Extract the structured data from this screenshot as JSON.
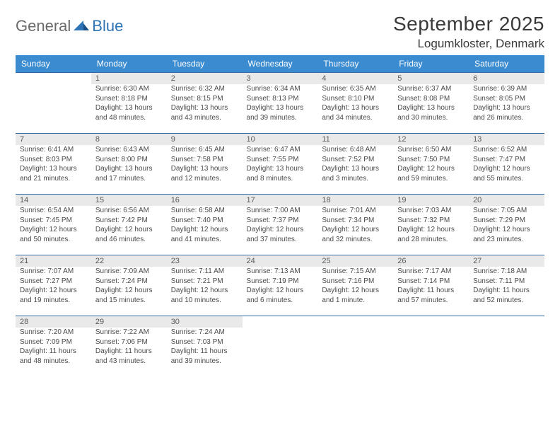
{
  "logo": {
    "word1": "General",
    "word2": "Blue"
  },
  "title": "September 2025",
  "location": "Logumkloster, Denmark",
  "colors": {
    "header_bg": "#3a8bd0",
    "header_text": "#ffffff",
    "daynum_bg": "#e9e9e9",
    "rule": "#2f6aa8",
    "text": "#4a4a4a",
    "logo_gray": "#6b6b6b",
    "logo_blue": "#2f75b5"
  },
  "day_names": [
    "Sunday",
    "Monday",
    "Tuesday",
    "Wednesday",
    "Thursday",
    "Friday",
    "Saturday"
  ],
  "weeks": [
    [
      null,
      {
        "n": "1",
        "sr": "6:30 AM",
        "ss": "8:18 PM",
        "dl": "13 hours and 48 minutes."
      },
      {
        "n": "2",
        "sr": "6:32 AM",
        "ss": "8:15 PM",
        "dl": "13 hours and 43 minutes."
      },
      {
        "n": "3",
        "sr": "6:34 AM",
        "ss": "8:13 PM",
        "dl": "13 hours and 39 minutes."
      },
      {
        "n": "4",
        "sr": "6:35 AM",
        "ss": "8:10 PM",
        "dl": "13 hours and 34 minutes."
      },
      {
        "n": "5",
        "sr": "6:37 AM",
        "ss": "8:08 PM",
        "dl": "13 hours and 30 minutes."
      },
      {
        "n": "6",
        "sr": "6:39 AM",
        "ss": "8:05 PM",
        "dl": "13 hours and 26 minutes."
      }
    ],
    [
      {
        "n": "7",
        "sr": "6:41 AM",
        "ss": "8:03 PM",
        "dl": "13 hours and 21 minutes."
      },
      {
        "n": "8",
        "sr": "6:43 AM",
        "ss": "8:00 PM",
        "dl": "13 hours and 17 minutes."
      },
      {
        "n": "9",
        "sr": "6:45 AM",
        "ss": "7:58 PM",
        "dl": "13 hours and 12 minutes."
      },
      {
        "n": "10",
        "sr": "6:47 AM",
        "ss": "7:55 PM",
        "dl": "13 hours and 8 minutes."
      },
      {
        "n": "11",
        "sr": "6:48 AM",
        "ss": "7:52 PM",
        "dl": "13 hours and 3 minutes."
      },
      {
        "n": "12",
        "sr": "6:50 AM",
        "ss": "7:50 PM",
        "dl": "12 hours and 59 minutes."
      },
      {
        "n": "13",
        "sr": "6:52 AM",
        "ss": "7:47 PM",
        "dl": "12 hours and 55 minutes."
      }
    ],
    [
      {
        "n": "14",
        "sr": "6:54 AM",
        "ss": "7:45 PM",
        "dl": "12 hours and 50 minutes."
      },
      {
        "n": "15",
        "sr": "6:56 AM",
        "ss": "7:42 PM",
        "dl": "12 hours and 46 minutes."
      },
      {
        "n": "16",
        "sr": "6:58 AM",
        "ss": "7:40 PM",
        "dl": "12 hours and 41 minutes."
      },
      {
        "n": "17",
        "sr": "7:00 AM",
        "ss": "7:37 PM",
        "dl": "12 hours and 37 minutes."
      },
      {
        "n": "18",
        "sr": "7:01 AM",
        "ss": "7:34 PM",
        "dl": "12 hours and 32 minutes."
      },
      {
        "n": "19",
        "sr": "7:03 AM",
        "ss": "7:32 PM",
        "dl": "12 hours and 28 minutes."
      },
      {
        "n": "20",
        "sr": "7:05 AM",
        "ss": "7:29 PM",
        "dl": "12 hours and 23 minutes."
      }
    ],
    [
      {
        "n": "21",
        "sr": "7:07 AM",
        "ss": "7:27 PM",
        "dl": "12 hours and 19 minutes."
      },
      {
        "n": "22",
        "sr": "7:09 AM",
        "ss": "7:24 PM",
        "dl": "12 hours and 15 minutes."
      },
      {
        "n": "23",
        "sr": "7:11 AM",
        "ss": "7:21 PM",
        "dl": "12 hours and 10 minutes."
      },
      {
        "n": "24",
        "sr": "7:13 AM",
        "ss": "7:19 PM",
        "dl": "12 hours and 6 minutes."
      },
      {
        "n": "25",
        "sr": "7:15 AM",
        "ss": "7:16 PM",
        "dl": "12 hours and 1 minute."
      },
      {
        "n": "26",
        "sr": "7:17 AM",
        "ss": "7:14 PM",
        "dl": "11 hours and 57 minutes."
      },
      {
        "n": "27",
        "sr": "7:18 AM",
        "ss": "7:11 PM",
        "dl": "11 hours and 52 minutes."
      }
    ],
    [
      {
        "n": "28",
        "sr": "7:20 AM",
        "ss": "7:09 PM",
        "dl": "11 hours and 48 minutes."
      },
      {
        "n": "29",
        "sr": "7:22 AM",
        "ss": "7:06 PM",
        "dl": "11 hours and 43 minutes."
      },
      {
        "n": "30",
        "sr": "7:24 AM",
        "ss": "7:03 PM",
        "dl": "11 hours and 39 minutes."
      },
      null,
      null,
      null,
      null
    ]
  ],
  "labels": {
    "sunrise": "Sunrise:",
    "sunset": "Sunset:",
    "daylight": "Daylight:"
  },
  "fonts": {
    "title_pt": 28,
    "location_pt": 17,
    "header_pt": 12,
    "daynum_pt": 11,
    "body_pt": 10
  }
}
